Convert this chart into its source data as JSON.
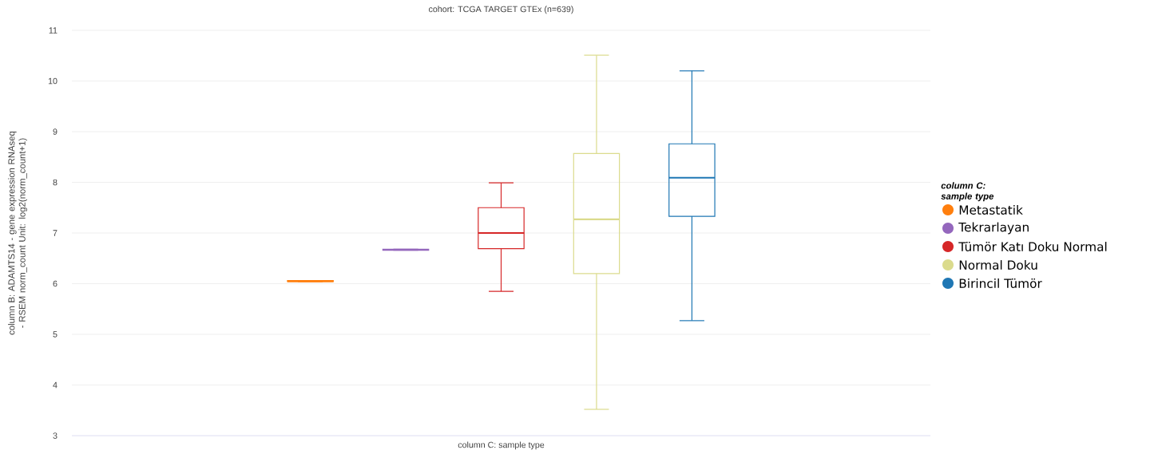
{
  "chart_data": {
    "type": "box",
    "title": "cohort: TCGA TARGET GTEx (n=639)",
    "xlabel": "column C: sample type",
    "ylabel": "column B: ADAMTS14 - gene expression RNAseq - RSEM norm_count Unit: log2(norm_count+1)",
    "legend_title": "column C: sample type",
    "legend": "right",
    "grid": "y",
    "categories": [
      null,
      null,
      null,
      null,
      null,
      null,
      null,
      null,
      null
    ],
    "ylim": [
      3,
      11
    ],
    "yticks": [
      3,
      4,
      5,
      6,
      7,
      8,
      9,
      10,
      11
    ],
    "series": [
      {
        "name": "Metastatik",
        "color": "#ff7f0e",
        "boxes": [
          null,
          null,
          {
            "low": 6.04,
            "q1": 6.04,
            "median": 6.05,
            "q3": 6.06,
            "high": 6.06
          },
          null,
          null,
          null,
          null,
          null,
          null
        ]
      },
      {
        "name": "Tekrarlayan",
        "color": "#9467bd",
        "boxes": [
          null,
          null,
          null,
          {
            "low": 6.66,
            "q1": 6.66,
            "median": 6.67,
            "q3": 6.68,
            "high": 6.68
          },
          null,
          null,
          null,
          null,
          null
        ]
      },
      {
        "name": "Tümör Katı Doku Normal",
        "color": "#d62728",
        "boxes": [
          null,
          null,
          null,
          null,
          {
            "low": 5.85,
            "q1": 6.69,
            "median": 7.0,
            "q3": 7.5,
            "high": 7.99
          },
          null,
          null,
          null,
          null
        ]
      },
      {
        "name": "Normal Doku",
        "color": "#dbdb8d",
        "boxes": [
          null,
          null,
          null,
          null,
          null,
          {
            "low": 3.52,
            "q1": 6.2,
            "median": 7.27,
            "q3": 8.57,
            "high": 10.51
          },
          null,
          null,
          null
        ]
      },
      {
        "name": "Birincil Tümör",
        "color": "#1f77b4",
        "boxes": [
          null,
          null,
          null,
          null,
          null,
          null,
          {
            "low": 5.27,
            "q1": 7.33,
            "median": 8.09,
            "q3": 8.76,
            "high": 10.2
          },
          null,
          null
        ]
      }
    ]
  }
}
